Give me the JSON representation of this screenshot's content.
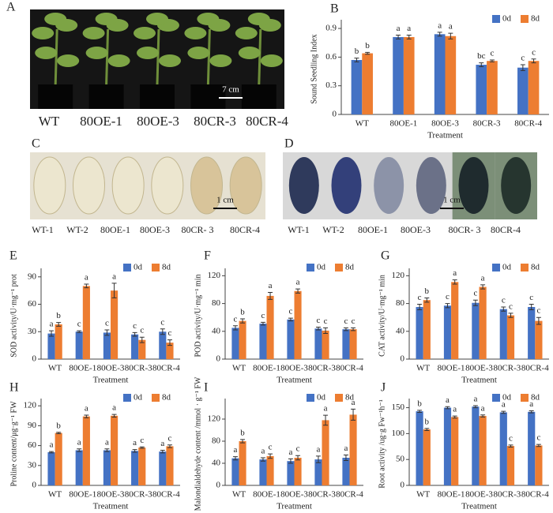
{
  "photo_panels": [
    {
      "letter": "A",
      "labels": [
        "WT",
        "80OE-1",
        "80OE-3",
        "80CR-3",
        "80CR-4"
      ],
      "scale": "7 cm"
    },
    {
      "letter": "C",
      "labels": [
        "WT-1",
        "WT-2",
        "80OE-1",
        "80OE-3",
        "80CR- 3",
        "80CR-4"
      ],
      "scale": "1 cm"
    },
    {
      "letter": "D",
      "labels": [
        "WT-1",
        "WT-2",
        "80OE-1",
        "80OE-3",
        "80CR- 3",
        "80CR-4"
      ],
      "scale": "1 cm"
    }
  ],
  "chart_data": [
    {
      "type": "bar",
      "letter": "B",
      "ylabel": "Sound Seedling Index",
      "xlabel": "Treatment",
      "categories": [
        "WT",
        "80OE-1",
        "80OE-3",
        "80CR-3",
        "80CR-4"
      ],
      "series": [
        {
          "name": "0d",
          "color": "#4472c4",
          "values": [
            0.57,
            0.81,
            0.84,
            0.52,
            0.49
          ],
          "errors": [
            0.02,
            0.02,
            0.02,
            0.02,
            0.03
          ],
          "letters": [
            "b",
            "a",
            "a",
            "bc",
            "c"
          ]
        },
        {
          "name": "8d",
          "color": "#ed7d31",
          "values": [
            0.64,
            0.81,
            0.82,
            0.56,
            0.56
          ],
          "errors": [
            0.01,
            0.02,
            0.03,
            0.01,
            0.02
          ],
          "letters": [
            "b",
            "a",
            "a",
            "c",
            "c"
          ]
        }
      ],
      "ylim": [
        0,
        0.95
      ],
      "yticks": [
        0,
        0.3,
        0.6,
        0.9
      ]
    },
    {
      "type": "bar",
      "letter": "E",
      "ylabel": "SOD activity/U·mg⁻¹ prot",
      "xlabel": "Treatment",
      "categories": [
        "WT",
        "80OE-1",
        "80OE-3",
        "80CR-3",
        "80CR-4"
      ],
      "series": [
        {
          "name": "0d",
          "color": "#4472c4",
          "values": [
            28,
            30,
            29,
            27,
            30
          ],
          "errors": [
            3,
            1,
            3,
            2,
            3
          ],
          "letters": [
            "a",
            "c",
            "c",
            "c",
            "c"
          ]
        },
        {
          "name": "8d",
          "color": "#ed7d31",
          "values": [
            38,
            80,
            75,
            21,
            18
          ],
          "errors": [
            2,
            2,
            8,
            3,
            3
          ],
          "letters": [
            "b",
            "a",
            "a",
            "c",
            "c"
          ]
        }
      ],
      "ylim": [
        0,
        95
      ],
      "yticks": [
        0,
        30,
        60,
        90
      ]
    },
    {
      "type": "bar",
      "letter": "F",
      "ylabel": "POD activity/U·mg⁻¹ min",
      "xlabel": "Treatment",
      "categories": [
        "WT",
        "80OE-1",
        "80OE-3",
        "80CR-3",
        "80CR-4"
      ],
      "series": [
        {
          "name": "0d",
          "color": "#4472c4",
          "values": [
            45,
            51,
            57,
            44,
            43
          ],
          "errors": [
            3,
            2,
            2,
            2,
            2
          ],
          "letters": [
            "c",
            "c",
            "c",
            "c",
            "c"
          ]
        },
        {
          "name": "8d",
          "color": "#ed7d31",
          "values": [
            55,
            91,
            98,
            41,
            43
          ],
          "errors": [
            3,
            5,
            3,
            4,
            2
          ],
          "letters": [
            "b",
            "a",
            "a",
            "c",
            "c"
          ]
        }
      ],
      "ylim": [
        0,
        125
      ],
      "yticks": [
        0,
        40,
        80,
        120
      ]
    },
    {
      "type": "bar",
      "letter": "G",
      "ylabel": "CAT activity/U·mg⁻¹ min",
      "xlabel": "Treatment",
      "categories": [
        "WT",
        "80OE-1",
        "80OE-3",
        "80CR-3",
        "80CR-4"
      ],
      "series": [
        {
          "name": "0d",
          "color": "#4472c4",
          "values": [
            75,
            77,
            81,
            72,
            75
          ],
          "errors": [
            4,
            3,
            4,
            3,
            4
          ],
          "letters": [
            "c",
            "c",
            "c",
            "c",
            "c"
          ]
        },
        {
          "name": "8d",
          "color": "#ed7d31",
          "values": [
            85,
            111,
            104,
            63,
            55
          ],
          "errors": [
            3,
            3,
            3,
            3,
            5
          ],
          "letters": [
            "b",
            "a",
            "a",
            "c",
            "c"
          ]
        }
      ],
      "ylim": [
        0,
        125
      ],
      "yticks": [
        0,
        40,
        80,
        120
      ]
    },
    {
      "type": "bar",
      "letter": "H",
      "ylabel": "Proline content/μg·g⁻¹ FW",
      "xlabel": "Treatment",
      "categories": [
        "WT",
        "80OE-1",
        "80OE-3",
        "80CR-3",
        "80CR-4"
      ],
      "series": [
        {
          "name": "0d",
          "color": "#4472c4",
          "values": [
            50,
            53,
            53,
            52,
            51
          ],
          "errors": [
            1,
            2,
            2,
            2,
            2
          ],
          "letters": [
            "a",
            "a",
            "a",
            "a",
            "a"
          ]
        },
        {
          "name": "8d",
          "color": "#ed7d31",
          "values": [
            79,
            104,
            105,
            57,
            59
          ],
          "errors": [
            1,
            2,
            2,
            1,
            2
          ],
          "letters": [
            "b",
            "a",
            "a",
            "c",
            "c"
          ]
        }
      ],
      "ylim": [
        0,
        125
      ],
      "yticks": [
        0,
        30,
        60,
        90,
        120
      ]
    },
    {
      "type": "bar",
      "letter": "I",
      "ylabel": "Malondialdehyde content /mmol · g⁻¹ FW",
      "xlabel": "Treatment",
      "categories": [
        "WT",
        "80OE-1",
        "80OE-3",
        "80CR-3",
        "80CR-4"
      ],
      "series": [
        {
          "name": "0d",
          "color": "#4472c4",
          "values": [
            49,
            47,
            44,
            47,
            50
          ],
          "errors": [
            3,
            3,
            4,
            6,
            5
          ],
          "letters": [
            "a",
            "a",
            "a",
            "a",
            "a"
          ]
        },
        {
          "name": "8d",
          "color": "#ed7d31",
          "values": [
            80,
            53,
            50,
            118,
            128
          ],
          "errors": [
            3,
            4,
            4,
            9,
            10
          ],
          "letters": [
            "b",
            "c",
            "c",
            "a",
            "a"
          ]
        }
      ],
      "ylim": [
        0,
        150
      ],
      "yticks": [
        0,
        40,
        80,
        120
      ]
    },
    {
      "type": "bar",
      "letter": "J",
      "ylabel": "Root activity /ug·g Fw⁻¹h⁻¹",
      "xlabel": "Treatment",
      "categories": [
        "WT",
        "80OE-1",
        "80OE-3",
        "80CR-3",
        "80CR-4"
      ],
      "series": [
        {
          "name": "0d",
          "color": "#4472c4",
          "values": [
            143,
            150,
            152,
            141,
            142
          ],
          "errors": [
            2,
            2,
            2,
            2,
            2
          ],
          "letters": [
            "b",
            "a",
            "a",
            "a",
            "a"
          ]
        },
        {
          "name": "8d",
          "color": "#ed7d31",
          "values": [
            108,
            132,
            134,
            76,
            77
          ],
          "errors": [
            2,
            2,
            2,
            2,
            2
          ],
          "letters": [
            "b",
            "a",
            "a",
            "c",
            "c"
          ]
        }
      ],
      "ylim": [
        0,
        160
      ],
      "yticks": [
        0,
        50,
        100,
        150
      ]
    }
  ]
}
